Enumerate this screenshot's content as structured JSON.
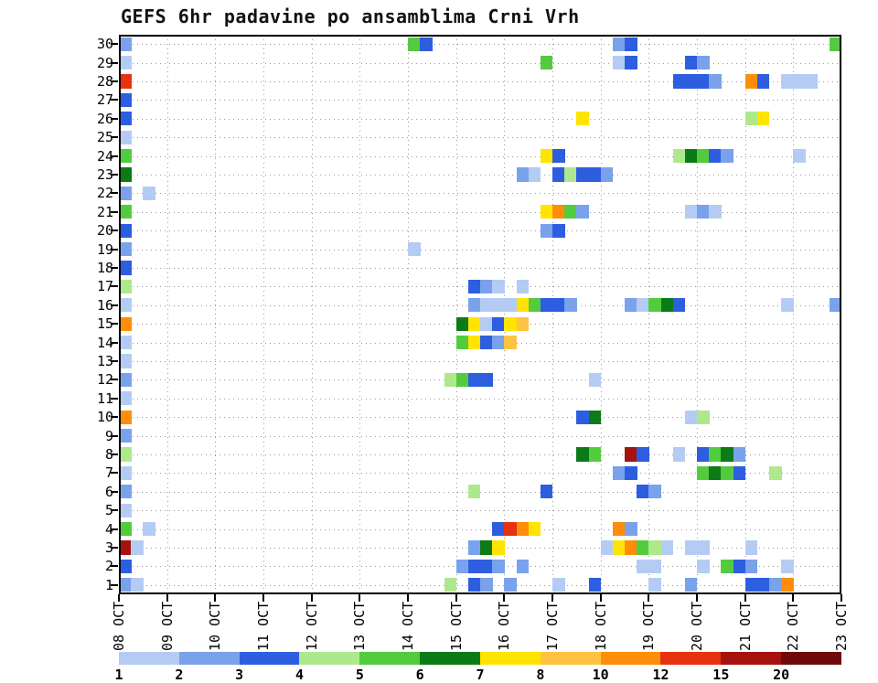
{
  "title": "GEFS 6hr padavine po ansamblima Crni Vrh",
  "chart_data": {
    "type": "heatmap",
    "title": "GEFS 6hr padavine po ansamblima Crni Vrh",
    "description": "Ensemble meteogram of 6-hourly precipitation per GEFS ensemble member (y: members 1-30, x: 6hr timesteps 08 OCT - 23 OCT), cell color = precipitation amount",
    "x_axis": {
      "labels": [
        "08 OCT",
        "09 OCT",
        "10 OCT",
        "11 OCT",
        "12 OCT",
        "13 OCT",
        "14 OCT",
        "15 OCT",
        "16 OCT",
        "17 OCT",
        "18 OCT",
        "19 OCT",
        "20 OCT",
        "21 OCT",
        "22 OCT",
        "23 OCT"
      ],
      "steps_per_label": 4,
      "total_steps": 60
    },
    "y_axis": {
      "tick_labels": [
        "30",
        "29",
        "28",
        "27",
        "26",
        "25",
        "24",
        "23",
        "22",
        "21",
        "20",
        "19",
        "18",
        "17",
        "16",
        "15",
        "14",
        "13",
        "12",
        "11",
        "10",
        "9",
        "8",
        "7",
        "6",
        "5",
        "4",
        "3",
        "2",
        "1"
      ]
    },
    "legend": {
      "labels": [
        "1",
        "2",
        "3",
        "4",
        "5",
        "6",
        "7",
        "8",
        "10",
        "12",
        "15",
        "20"
      ],
      "colors": [
        "#b4ccf4",
        "#7aa2ec",
        "#2d5ee0",
        "#aee88c",
        "#52cc3e",
        "#0c7a16",
        "#ffe400",
        "#ffc342",
        "#ff8d0a",
        "#e6320f",
        "#a6120e",
        "#700a0a"
      ]
    },
    "cells": {
      "30": [
        [
          0,
          1
        ],
        [
          24,
          4
        ],
        [
          25,
          2
        ],
        [
          41,
          1
        ],
        [
          42,
          2
        ],
        [
          59,
          4
        ]
      ],
      "29": [
        [
          0,
          0
        ],
        [
          35,
          4
        ],
        [
          41,
          0
        ],
        [
          42,
          2
        ],
        [
          47,
          2
        ],
        [
          48,
          1
        ]
      ],
      "28": [
        [
          0,
          9
        ],
        [
          46,
          2
        ],
        [
          47,
          2
        ],
        [
          48,
          2
        ],
        [
          49,
          1
        ],
        [
          52,
          8
        ],
        [
          53,
          2
        ],
        [
          55,
          0
        ],
        [
          56,
          0
        ],
        [
          57,
          0
        ]
      ],
      "27": [
        [
          0,
          2
        ]
      ],
      "26": [
        [
          0,
          2
        ],
        [
          38,
          6
        ],
        [
          52,
          3
        ],
        [
          53,
          6
        ]
      ],
      "25": [
        [
          0,
          0
        ]
      ],
      "24": [
        [
          0,
          4
        ],
        [
          35,
          6
        ],
        [
          36,
          2
        ],
        [
          46,
          3
        ],
        [
          47,
          5
        ],
        [
          48,
          4
        ],
        [
          49,
          2
        ],
        [
          50,
          1
        ],
        [
          56,
          0
        ]
      ],
      "23": [
        [
          0,
          5
        ],
        [
          33,
          1
        ],
        [
          34,
          0
        ],
        [
          36,
          2
        ],
        [
          37,
          3
        ],
        [
          38,
          2
        ],
        [
          39,
          2
        ],
        [
          40,
          1
        ]
      ],
      "22": [
        [
          0,
          1
        ],
        [
          2,
          0
        ]
      ],
      "21": [
        [
          0,
          4
        ],
        [
          35,
          6
        ],
        [
          36,
          8
        ],
        [
          37,
          4
        ],
        [
          38,
          1
        ],
        [
          47,
          0
        ],
        [
          48,
          1
        ],
        [
          49,
          0
        ]
      ],
      "20": [
        [
          0,
          2
        ],
        [
          35,
          1
        ],
        [
          36,
          2
        ]
      ],
      "19": [
        [
          0,
          1
        ],
        [
          24,
          0
        ]
      ],
      "18": [
        [
          0,
          2
        ]
      ],
      "17": [
        [
          0,
          3
        ],
        [
          29,
          2
        ],
        [
          30,
          1
        ],
        [
          31,
          0
        ],
        [
          33,
          0
        ]
      ],
      "16": [
        [
          0,
          0
        ],
        [
          29,
          1
        ],
        [
          30,
          0
        ],
        [
          31,
          0
        ],
        [
          32,
          0
        ],
        [
          33,
          6
        ],
        [
          34,
          4
        ],
        [
          35,
          2
        ],
        [
          36,
          2
        ],
        [
          37,
          1
        ],
        [
          42,
          1
        ],
        [
          43,
          0
        ],
        [
          44,
          4
        ],
        [
          45,
          5
        ],
        [
          46,
          2
        ],
        [
          55,
          0
        ],
        [
          59,
          1
        ]
      ],
      "15": [
        [
          0,
          8
        ],
        [
          28,
          5
        ],
        [
          29,
          6
        ],
        [
          30,
          0
        ],
        [
          31,
          2
        ],
        [
          32,
          6
        ],
        [
          33,
          7
        ]
      ],
      "14": [
        [
          0,
          0
        ],
        [
          28,
          4
        ],
        [
          29,
          6
        ],
        [
          30,
          2
        ],
        [
          31,
          1
        ],
        [
          32,
          7
        ]
      ],
      "13": [
        [
          0,
          0
        ]
      ],
      "12": [
        [
          0,
          1
        ],
        [
          27,
          3
        ],
        [
          28,
          4
        ],
        [
          29,
          2
        ],
        [
          30,
          2
        ],
        [
          39,
          0
        ]
      ],
      "11": [
        [
          0,
          0
        ]
      ],
      "10": [
        [
          0,
          8
        ],
        [
          38,
          2
        ],
        [
          39,
          5
        ],
        [
          47,
          0
        ],
        [
          48,
          3
        ]
      ],
      "9": [
        [
          0,
          1
        ]
      ],
      "8": [
        [
          0,
          3
        ],
        [
          38,
          5
        ],
        [
          39,
          4
        ],
        [
          42,
          10
        ],
        [
          43,
          2
        ],
        [
          46,
          0
        ],
        [
          48,
          2
        ],
        [
          49,
          4
        ],
        [
          50,
          5
        ],
        [
          51,
          1
        ]
      ],
      "7": [
        [
          0,
          0
        ],
        [
          41,
          1
        ],
        [
          42,
          2
        ],
        [
          48,
          4
        ],
        [
          49,
          5
        ],
        [
          50,
          4
        ],
        [
          51,
          2
        ],
        [
          54,
          3
        ]
      ],
      "6": [
        [
          0,
          1
        ],
        [
          29,
          3
        ],
        [
          35,
          2
        ],
        [
          43,
          2
        ],
        [
          44,
          1
        ]
      ],
      "5": [
        [
          0,
          0
        ]
      ],
      "4": [
        [
          0,
          4
        ],
        [
          2,
          0
        ],
        [
          31,
          2
        ],
        [
          32,
          9
        ],
        [
          33,
          8
        ],
        [
          34,
          6
        ],
        [
          41,
          8
        ],
        [
          42,
          1
        ]
      ],
      "3": [
        [
          0,
          10
        ],
        [
          1,
          0
        ],
        [
          29,
          1
        ],
        [
          30,
          5
        ],
        [
          31,
          6
        ],
        [
          40,
          0
        ],
        [
          41,
          6
        ],
        [
          42,
          8
        ],
        [
          43,
          4
        ],
        [
          44,
          3
        ],
        [
          45,
          0
        ],
        [
          47,
          0
        ],
        [
          48,
          0
        ],
        [
          52,
          0
        ]
      ],
      "2": [
        [
          0,
          2
        ],
        [
          28,
          1
        ],
        [
          29,
          2
        ],
        [
          30,
          2
        ],
        [
          31,
          1
        ],
        [
          33,
          1
        ],
        [
          43,
          0
        ],
        [
          44,
          0
        ],
        [
          48,
          0
        ],
        [
          50,
          4
        ],
        [
          51,
          2
        ],
        [
          52,
          1
        ],
        [
          55,
          0
        ]
      ],
      "1": [
        [
          0,
          1
        ],
        [
          1,
          0
        ],
        [
          27,
          3
        ],
        [
          29,
          2
        ],
        [
          30,
          1
        ],
        [
          32,
          1
        ],
        [
          36,
          0
        ],
        [
          39,
          2
        ],
        [
          44,
          0
        ],
        [
          47,
          1
        ],
        [
          52,
          2
        ],
        [
          53,
          2
        ],
        [
          54,
          1
        ],
        [
          55,
          8
        ]
      ]
    }
  }
}
